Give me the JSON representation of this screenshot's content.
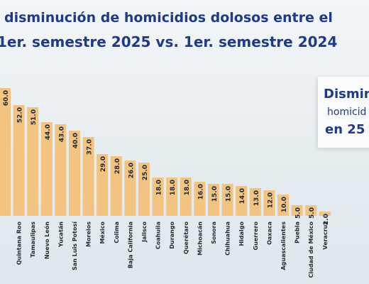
{
  "header": {
    "title_line1": "disminución de homicidios dolosos entre el",
    "title_line2": "1er. semestre 2025 vs. 1er. semestre 2024"
  },
  "side_panel": {
    "line1": "Dismin",
    "line2": "homicid",
    "line3": "en 25 e"
  },
  "colors": {
    "bar": "#f2c47f",
    "title": "#1e3a8a",
    "label": "#1f2937"
  },
  "chart_data": {
    "type": "bar",
    "title": "disminución de homicidios dolosos entre el 1er. semestre 2025 vs. 1er. semestre 2024",
    "categories": [
      "",
      "Quintana Roo",
      "Tamaulipas",
      "Nuevo León",
      "Yucatán",
      "San Luis Potosí",
      "Morelos",
      "México",
      "Colima",
      "Baja California",
      "Jalisco",
      "Coahuila",
      "Durango",
      "Querétaro",
      "Michoacán",
      "Sonora",
      "Chihuahua",
      "Hidalgo",
      "Guerrero",
      "Oaxaca",
      "Aguascalientes",
      "Puebla",
      "Ciudad de México",
      "Veracruz"
    ],
    "values": [
      60.0,
      52.0,
      51.0,
      44.0,
      43.0,
      40.0,
      37.0,
      29.0,
      28.0,
      26.0,
      25.0,
      18.0,
      18.0,
      18.0,
      16.0,
      15.0,
      15.0,
      14.0,
      13.0,
      12.0,
      10.0,
      5.0,
      5.0,
      2.0
    ],
    "value_labels": [
      "60.0",
      "52.0",
      "51.0",
      "44.0",
      "43.0",
      "40.0",
      "37.0",
      "29.0",
      "28.0",
      "26.0",
      "25.0",
      "18.0",
      "18.0",
      "18.0",
      "16.0",
      "15.0",
      "15.0",
      "14.0",
      "13.0",
      "12.0",
      "10.0",
      "5.0",
      "5.0",
      "2.0"
    ],
    "xlabel": "",
    "ylabel": "",
    "ylim": [
      0,
      60
    ],
    "grid": false,
    "legend": "none"
  }
}
